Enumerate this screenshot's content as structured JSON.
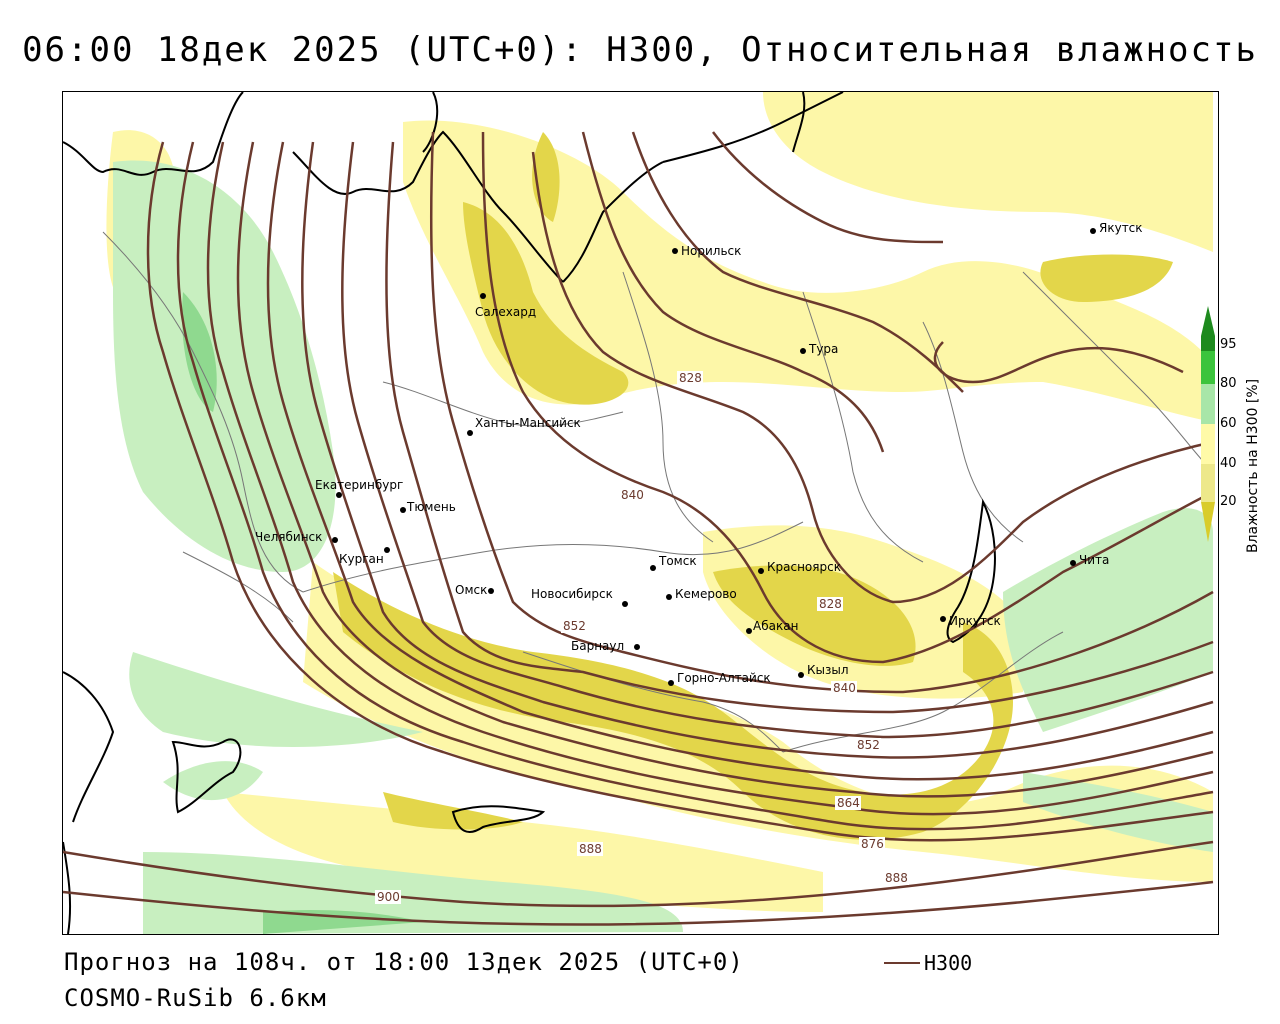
{
  "title": "06:00 18дек 2025 (UTC+0): H300, Относительная влажность",
  "footer": {
    "forecast": "Прогноз на 108ч. от 18:00 13дек 2025 (UTC+0)",
    "model": "COSMO-RuSib 6.6км",
    "legend_label": "H300"
  },
  "colorbar": {
    "axis_label": "Влажность на H300 [%]",
    "ticks": [
      "95",
      "80",
      "60",
      "40",
      "20"
    ],
    "colors": {
      "c95": "#1e8a1e",
      "c80": "#3cc43c",
      "c60": "#a8e6a8",
      "c40": "#fffaa8",
      "c20": "#ede88a",
      "dry": "#d9cc2a"
    }
  },
  "colors": {
    "contour": "#6b3a2e",
    "coast": "#000000",
    "border": "#777777",
    "humid_high": "#e3d64a",
    "humid_mid": "#fdf7a8",
    "humid_green": "#c8efc0"
  },
  "cities": [
    {
      "name": "Норильск"
    },
    {
      "name": "Якутск"
    },
    {
      "name": "Салехард"
    },
    {
      "name": "Тура"
    },
    {
      "name": "Ханты-Мансийск"
    },
    {
      "name": "Екатеринбург"
    },
    {
      "name": "Тюмень"
    },
    {
      "name": "Челябинск"
    },
    {
      "name": "Курган"
    },
    {
      "name": "Омск"
    },
    {
      "name": "Новосибирск"
    },
    {
      "name": "Томск"
    },
    {
      "name": "Кемерово"
    },
    {
      "name": "Красноярск"
    },
    {
      "name": "Барнаул"
    },
    {
      "name": "Абакан"
    },
    {
      "name": "Горно-Алтайск"
    },
    {
      "name": "Кызыл"
    },
    {
      "name": "Иркутск"
    },
    {
      "name": "Чита"
    }
  ],
  "contour_labels": [
    "828",
    "840",
    "852",
    "828",
    "840",
    "852",
    "864",
    "876",
    "888",
    "888",
    "900"
  ]
}
